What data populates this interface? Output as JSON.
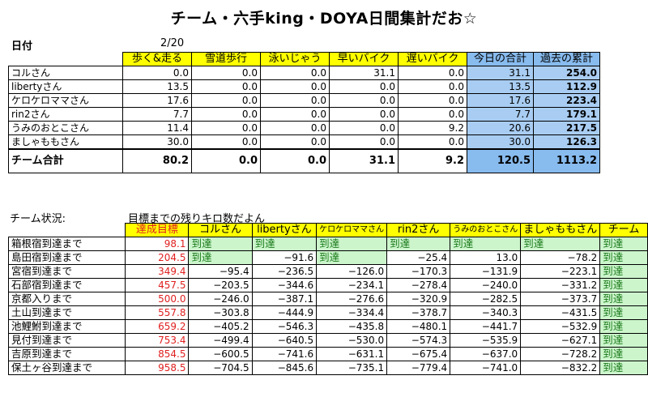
{
  "title": "チーム・六手king・DOYA日間集計だお☆",
  "date_label": "日付",
  "date_value": "2/20",
  "top_table": {
    "headers": [
      "歩く&走る",
      "雪道歩行",
      "泳いじゃう",
      "早いバイク",
      "遅いバイク",
      "今日の合計",
      "過去の累計"
    ],
    "rows": [
      {
        "name": "コルさん",
        "values": [
          "0.0",
          "0.0",
          "0.0",
          "31.1",
          "0.0",
          "31.1",
          "254.0"
        ]
      },
      {
        "name": "libertyさん",
        "values": [
          "13.5",
          "0.0",
          "0.0",
          "0.0",
          "0.0",
          "13.5",
          "112.9"
        ]
      },
      {
        "name": "ケロケロママさん",
        "values": [
          "17.6",
          "0.0",
          "0.0",
          "0.0",
          "0.0",
          "17.6",
          "223.4"
        ]
      },
      {
        "name": "rin2さん",
        "values": [
          "7.7",
          "0.0",
          "0.0",
          "0.0",
          "0.0",
          "7.7",
          "179.1"
        ]
      },
      {
        "name": "うみのおとこさん",
        "values": [
          "11.4",
          "0.0",
          "0.0",
          "0.0",
          "9.2",
          "20.6",
          "217.5"
        ]
      },
      {
        "name": "ましゃももさん",
        "values": [
          "30.0",
          "0.0",
          "0.0",
          "0.0",
          "0.0",
          "30.0",
          "126.3"
        ]
      }
    ],
    "total": {
      "name": "チーム合計",
      "values": [
        "80.2",
        "0.0",
        "0.0",
        "31.1",
        "9.2",
        "120.5",
        "1113.2"
      ]
    }
  },
  "status_label": "チーム状況:",
  "status_sub": "目標までの残りキロ数だよん",
  "bottom_table": {
    "headers": [
      "達成目標",
      "コルさん",
      "libertyさん",
      "ケロケロママさん",
      "rin2さん",
      "うみのおとこさん",
      "ましゃももさん",
      "チーム"
    ],
    "rows": [
      {
        "place": "箱根宿到達まで",
        "goal": "98.1",
        "values": [
          "到達",
          "到達",
          "到達",
          "到達",
          "到達",
          "到達",
          "到達"
        ]
      },
      {
        "place": "島田宿到達まで",
        "goal": "204.5",
        "values": [
          "到達",
          "−91.6",
          "到達",
          "−25.4",
          "13.0",
          "−78.2",
          "到達"
        ]
      },
      {
        "place": "宮宿到達まで",
        "goal": "349.4",
        "values": [
          "−95.4",
          "−236.5",
          "−126.0",
          "−170.3",
          "−131.9",
          "−223.1",
          "到達"
        ]
      },
      {
        "place": "石部宿到達まで",
        "goal": "457.5",
        "values": [
          "−203.5",
          "−344.6",
          "−234.1",
          "−278.4",
          "−240.0",
          "−331.2",
          "到達"
        ]
      },
      {
        "place": "京都入りまで",
        "goal": "500.0",
        "values": [
          "−246.0",
          "−387.1",
          "−276.6",
          "−320.9",
          "−282.5",
          "−373.7",
          "到達"
        ]
      },
      {
        "place": "土山到達まで",
        "goal": "557.8",
        "values": [
          "−303.8",
          "−444.9",
          "−334.4",
          "−378.7",
          "−340.3",
          "−431.5",
          "到達"
        ]
      },
      {
        "place": "池鯉鮒到達まで",
        "goal": "659.2",
        "values": [
          "−405.2",
          "−546.3",
          "−435.8",
          "−480.1",
          "−441.7",
          "−532.9",
          "到達"
        ]
      },
      {
        "place": "見付到達まで",
        "goal": "753.4",
        "values": [
          "−499.4",
          "−640.5",
          "−530.0",
          "−574.3",
          "−535.9",
          "−627.1",
          "到達"
        ]
      },
      {
        "place": "吉原到達まで",
        "goal": "854.5",
        "values": [
          "−600.5",
          "−741.6",
          "−631.1",
          "−675.4",
          "−637.0",
          "−728.2",
          "到達"
        ]
      },
      {
        "place": "保土ヶ谷到達まで",
        "goal": "958.5",
        "values": [
          "−704.5",
          "−845.6",
          "−735.1",
          "−779.4",
          "−741.0",
          "−832.2",
          "到達"
        ]
      }
    ]
  }
}
